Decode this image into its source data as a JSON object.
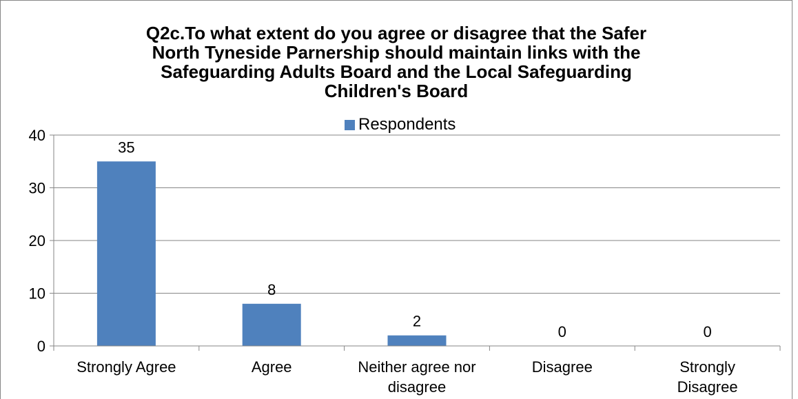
{
  "chart_data": {
    "type": "bar",
    "title": "Q2c.To what extent do you agree or disagree that the Safer North Tyneside Parnership should maintain links with the Safeguarding Adults Board and the Local Safeguarding Children's Board",
    "title_lines": [
      "Q2c.To what extent do you agree or disagree that the Safer",
      "North Tyneside Parnership should maintain links with the",
      "Safeguarding Adults Board and the Local Safeguarding",
      "Children's Board"
    ],
    "categories": [
      "Strongly Agree",
      "Agree",
      "Neither agree nor disagree",
      "Disagree",
      "Strongly Disagree"
    ],
    "category_lines": [
      [
        "Strongly Agree"
      ],
      [
        "Agree"
      ],
      [
        "Neither agree nor",
        "disagree"
      ],
      [
        "Disagree"
      ],
      [
        "Strongly",
        "Disagree"
      ]
    ],
    "series": [
      {
        "name": "Respondents",
        "values": [
          35,
          8,
          2,
          0,
          0
        ]
      }
    ],
    "ylim": [
      0,
      40
    ],
    "yticks": [
      0,
      10,
      20,
      30,
      40
    ],
    "grid": true,
    "legend_position": "top",
    "bar_color": "#4F81BD",
    "grid_color": "#868686"
  }
}
